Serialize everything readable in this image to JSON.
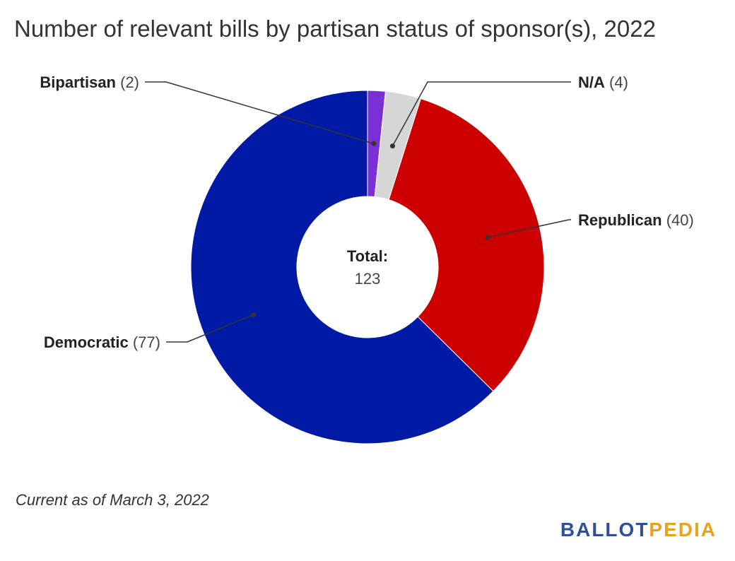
{
  "chart_data": {
    "type": "pie",
    "title": "Number of relevant bills by partisan status of sponsor(s), 2022",
    "slices": [
      {
        "label": "Bipartisan",
        "value": 2,
        "color": "#7b2fd6"
      },
      {
        "label": "N/A",
        "value": 4,
        "color": "#d6d6d6"
      },
      {
        "label": "Republican",
        "value": 40,
        "color": "#cc0000"
      },
      {
        "label": "Democratic",
        "value": 77,
        "color": "#001aa6"
      }
    ],
    "center_label": "Total:",
    "center_value": "123"
  },
  "footnote": "Current as of March 3, 2022",
  "brand": {
    "part1": "BALLOT",
    "part2": "PEDIA"
  }
}
